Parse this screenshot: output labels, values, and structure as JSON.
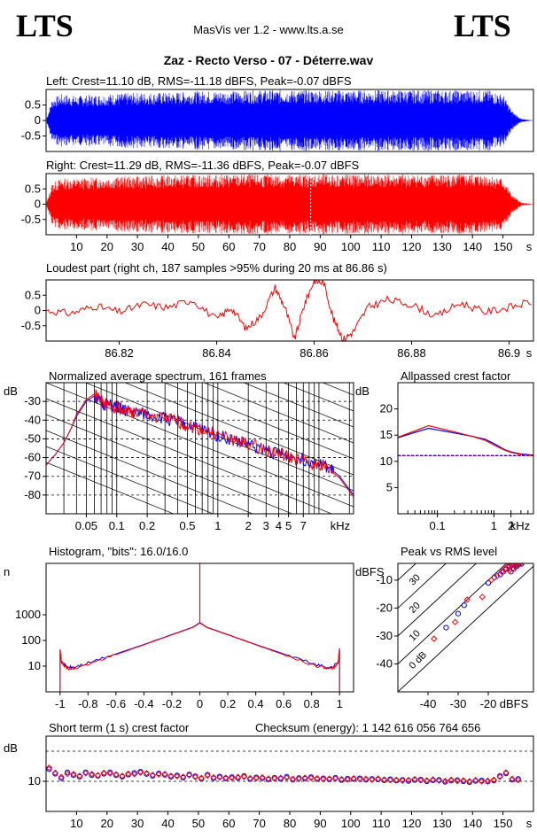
{
  "header": {
    "logo_left": "LTS",
    "logo_right": "LTS",
    "app_title": "MasVis ver 1.2 - www.lts.a.se",
    "track_title": "Zaz - Recto Verso - 07 - Déterre.wav"
  },
  "colors": {
    "left": "#0000ff",
    "right": "#ff0000",
    "grid": "#000000"
  },
  "chart_data": [
    {
      "id": "left_waveform",
      "type": "area",
      "title": "Left: Crest=11.10 dB, RMS=-11.18 dBFS, Peak=-0.07 dBFS",
      "ylim": [
        -1,
        1
      ],
      "xlim": [
        0,
        160
      ],
      "ytick_labels": [
        "0.5",
        "0",
        "-0.5"
      ],
      "yticks": [
        0.5,
        0,
        -0.5
      ],
      "envelope_x": [
        0,
        2,
        5,
        10,
        20,
        30,
        40,
        50,
        60,
        70,
        80,
        87,
        90,
        100,
        110,
        120,
        130,
        140,
        145,
        150,
        153,
        156,
        160
      ],
      "envelope_amp": [
        0.0,
        0.7,
        0.85,
        0.8,
        0.85,
        0.9,
        0.9,
        0.95,
        0.95,
        0.98,
        0.98,
        0.98,
        0.98,
        0.98,
        0.98,
        0.98,
        0.98,
        0.98,
        0.98,
        0.85,
        0.3,
        0.05,
        0.0
      ]
    },
    {
      "id": "right_waveform",
      "type": "area",
      "title": "Right: Crest=11.29 dB, RMS=-11.36 dBFS, Peak=-0.07 dBFS",
      "ylim": [
        -1,
        1
      ],
      "xlim": [
        0,
        160
      ],
      "ytick_labels": [
        "0.5",
        "0",
        "-0.5"
      ],
      "yticks": [
        0.5,
        0,
        -0.5
      ],
      "xtick_labels": [
        "10",
        "20",
        "30",
        "40",
        "50",
        "60",
        "70",
        "80",
        "90",
        "100",
        "110",
        "120",
        "130",
        "140",
        "150",
        "s"
      ],
      "xticks": [
        10,
        20,
        30,
        40,
        50,
        60,
        70,
        80,
        90,
        100,
        110,
        120,
        130,
        140,
        150
      ],
      "marker_x": 86.86,
      "envelope_x": [
        0,
        2,
        5,
        10,
        20,
        30,
        40,
        50,
        60,
        70,
        80,
        87,
        90,
        100,
        110,
        120,
        130,
        140,
        145,
        150,
        153,
        156,
        160
      ],
      "envelope_amp": [
        0.0,
        0.7,
        0.85,
        0.85,
        0.9,
        0.92,
        0.95,
        0.96,
        0.98,
        0.98,
        0.98,
        0.98,
        0.98,
        0.98,
        0.98,
        0.98,
        0.98,
        0.98,
        0.98,
        0.85,
        0.3,
        0.05,
        0.0
      ]
    },
    {
      "id": "loudest_part",
      "type": "line",
      "title": "Loudest part (right ch, 187 samples >95% during 20 ms at 86.86 s)",
      "xlim": [
        86.805,
        86.905
      ],
      "ylim": [
        -1,
        1
      ],
      "ytick_labels": [
        "0.5",
        "0",
        "-0.5"
      ],
      "yticks": [
        0.5,
        0,
        -0.5
      ],
      "xtick_labels": [
        "86.82",
        "86.84",
        "86.86",
        "86.88",
        "86.9",
        "s"
      ],
      "xticks": [
        86.82,
        86.84,
        86.86,
        86.88,
        86.9
      ],
      "x": [
        86.805,
        86.81,
        86.815,
        86.82,
        86.825,
        86.83,
        86.835,
        86.84,
        86.843,
        86.846,
        86.849,
        86.852,
        86.854,
        86.856,
        86.858,
        86.86,
        86.862,
        86.864,
        86.866,
        86.868,
        86.871,
        86.875,
        86.88,
        86.885,
        86.89,
        86.895,
        86.9,
        86.905
      ],
      "y": [
        0.0,
        -0.1,
        0.15,
        -0.05,
        0.2,
        0.1,
        0.35,
        -0.3,
        0.1,
        -0.6,
        -0.2,
        0.75,
        0.1,
        -0.95,
        0.2,
        0.98,
        0.9,
        -0.3,
        -0.95,
        -0.7,
        0.1,
        0.35,
        0.2,
        -0.2,
        0.25,
        -0.05,
        0.1,
        0.3
      ]
    },
    {
      "id": "avg_spectrum",
      "type": "line",
      "title": "Normalized average spectrum, 161 frames",
      "ylabel": "dB",
      "xlabel": "kHz",
      "xscale": "log",
      "xlim": [
        0.02,
        22
      ],
      "ylim": [
        -90,
        -20
      ],
      "ytick_labels": [
        "-30",
        "-40",
        "-50",
        "-60",
        "-70",
        "-80"
      ],
      "yticks": [
        -30,
        -40,
        -50,
        -60,
        -70,
        -80
      ],
      "xtick_labels": [
        "0.05",
        "0.1",
        "0.2",
        "0.5",
        "1",
        "2",
        "3",
        "4",
        "5",
        "7",
        "kHz"
      ],
      "xticks": [
        0.05,
        0.1,
        0.2,
        0.5,
        1,
        2,
        3,
        4,
        5,
        7
      ],
      "x": [
        0.02,
        0.025,
        0.03,
        0.035,
        0.04,
        0.05,
        0.06,
        0.07,
        0.08,
        0.1,
        0.12,
        0.15,
        0.2,
        0.3,
        0.4,
        0.5,
        0.7,
        1,
        1.5,
        2,
        3,
        4,
        5,
        7,
        10,
        13,
        16,
        20,
        22
      ],
      "series": [
        {
          "color": "#0000ff",
          "y": [
            -64,
            -58,
            -52,
            -45,
            -38,
            -30,
            -27,
            -31,
            -32,
            -33,
            -35,
            -36,
            -37,
            -39,
            -41,
            -43,
            -45,
            -48,
            -51,
            -53,
            -56,
            -58,
            -59,
            -61,
            -63,
            -66,
            -70,
            -77,
            -80
          ]
        },
        {
          "color": "#ff0000",
          "y": [
            -64,
            -58,
            -52,
            -45,
            -37,
            -29,
            -26,
            -30,
            -32,
            -33,
            -35,
            -36,
            -37,
            -39,
            -41,
            -43,
            -45,
            -48,
            -51,
            -53,
            -56,
            -58,
            -60,
            -62,
            -64,
            -67,
            -71,
            -78,
            -81
          ]
        }
      ]
    },
    {
      "id": "allpassed_crest",
      "type": "line",
      "title": "Allpassed crest factor",
      "ylabel": "dB",
      "xlabel": "kHz",
      "xscale": "log",
      "xlim": [
        0.02,
        5
      ],
      "ylim": [
        0,
        25
      ],
      "ytick_labels": [
        "20",
        "15",
        "10",
        "5"
      ],
      "yticks": [
        20,
        15,
        10,
        5
      ],
      "xtick_labels": [
        "0.1",
        "1",
        "2",
        "kHz"
      ],
      "xticks": [
        0.1,
        1,
        2
      ],
      "reference_level": 11.1,
      "x": [
        0.02,
        0.04,
        0.07,
        0.1,
        0.2,
        0.4,
        0.7,
        1,
        1.5,
        2,
        3,
        5
      ],
      "series": [
        {
          "color": "#0000ff",
          "y": [
            14.5,
            15.5,
            16.3,
            16.0,
            15.4,
            14.8,
            14.2,
            13.4,
            12.3,
            11.8,
            11.4,
            11.2
          ]
        },
        {
          "color": "#ff0000",
          "y": [
            14.6,
            15.8,
            16.8,
            16.4,
            15.6,
            14.8,
            14.0,
            13.1,
            12.2,
            11.7,
            11.3,
            11.1
          ]
        }
      ]
    },
    {
      "id": "histogram",
      "type": "line",
      "title": "Histogram, \"bits\": 16.0/16.0",
      "ylabel": "n",
      "yscale": "log",
      "xlim": [
        -1.1,
        1.1
      ],
      "ylim": [
        1,
        100000
      ],
      "ytick_labels": [
        "1000",
        "100",
        "10"
      ],
      "yticks": [
        1000,
        100,
        10
      ],
      "xtick_labels": [
        "-1",
        "-0.8",
        "-0.6",
        "-0.4",
        "-0.2",
        "0",
        "0.2",
        "0.4",
        "0.6",
        "0.8",
        "1"
      ],
      "xticks": [
        -1,
        -0.8,
        -0.6,
        -0.4,
        -0.2,
        0,
        0.2,
        0.4,
        0.6,
        0.8,
        1
      ],
      "x": [
        -1,
        -0.99,
        -0.95,
        -0.9,
        -0.8,
        -0.6,
        -0.4,
        -0.2,
        -0.05,
        0,
        0.05,
        0.2,
        0.4,
        0.6,
        0.8,
        0.9,
        0.95,
        0.99,
        1
      ],
      "series": [
        {
          "color": "#0000ff",
          "y": [
            50,
            15,
            9,
            9,
            13,
            30,
            70,
            170,
            330,
            500,
            330,
            170,
            70,
            30,
            13,
            9,
            9,
            15,
            50
          ]
        },
        {
          "color": "#ff0000",
          "y": [
            45,
            14,
            8,
            8,
            12,
            28,
            68,
            165,
            320,
            480,
            320,
            165,
            68,
            28,
            12,
            8,
            8,
            14,
            45
          ]
        }
      ]
    },
    {
      "id": "peak_vs_rms",
      "type": "scatter",
      "title": "Peak vs RMS level",
      "ylabel": "dBFS",
      "xlabel": "dBFS",
      "xlim": [
        -50,
        -5
      ],
      "ylim": [
        -50,
        -4
      ],
      "ytick_labels": [
        "-10",
        "-20",
        "-30",
        "-40"
      ],
      "yticks": [
        -10,
        -20,
        -30,
        -40
      ],
      "xtick_labels": [
        "-40",
        "-30",
        "-20",
        "dBFS"
      ],
      "xticks": [
        -40,
        -30,
        -20
      ],
      "crest_labels": [
        "40",
        "30",
        "20",
        "10",
        "0 dB"
      ],
      "crest_values": [
        40,
        30,
        20,
        10,
        0
      ],
      "series": [
        {
          "color": "#0000ff",
          "x": [
            -34,
            -30,
            -28,
            -20,
            -18,
            -16,
            -15,
            -14,
            -13,
            -12,
            -11,
            -10,
            -10.5,
            -11.5,
            -9,
            -12.5
          ],
          "y": [
            -27,
            -22,
            -19,
            -11,
            -9,
            -8,
            -7,
            -6,
            -5,
            -4.5,
            -4.5,
            -4.3,
            -5,
            -6,
            -4.2,
            -7
          ]
        },
        {
          "color": "#ff0000",
          "x": [
            -38,
            -31,
            -27,
            -22,
            -19,
            -17,
            -15.5,
            -14.5,
            -13.5,
            -12.5,
            -11.5,
            -10.5,
            -11,
            -12,
            -9.5,
            -13
          ],
          "y": [
            -31,
            -25,
            -17,
            -16,
            -10,
            -8.5,
            -7,
            -6,
            -5,
            -4.6,
            -4.5,
            -4.3,
            -5.2,
            -5.8,
            -4.2,
            -6.5
          ]
        }
      ]
    },
    {
      "id": "short_term_crest",
      "type": "scatter",
      "title": "Short term (1 s) crest factor",
      "checksum_label": "Checksum (energy):  1 142 616 056 764 656",
      "ylabel": "dB",
      "xlim": [
        0,
        160
      ],
      "ylim": [
        0,
        25
      ],
      "ytick_labels": [
        "10"
      ],
      "yticks": [
        10
      ],
      "dashed_levels": [
        10,
        20
      ],
      "xtick_labels": [
        "10",
        "20",
        "30",
        "40",
        "50",
        "60",
        "70",
        "80",
        "90",
        "100",
        "110",
        "120",
        "130",
        "140",
        "150",
        "s"
      ],
      "xticks": [
        10,
        20,
        30,
        40,
        50,
        60,
        70,
        80,
        90,
        100,
        110,
        120,
        130,
        140,
        150
      ],
      "x": [
        1,
        3,
        5,
        7,
        9,
        11,
        13,
        15,
        17,
        19,
        21,
        23,
        25,
        27,
        29,
        31,
        33,
        35,
        37,
        39,
        41,
        43,
        45,
        47,
        49,
        51,
        53,
        55,
        57,
        59,
        61,
        63,
        65,
        67,
        69,
        71,
        73,
        75,
        77,
        79,
        81,
        83,
        85,
        87,
        89,
        91,
        93,
        95,
        97,
        99,
        101,
        103,
        105,
        107,
        109,
        111,
        113,
        115,
        117,
        119,
        121,
        123,
        125,
        127,
        129,
        131,
        133,
        135,
        137,
        139,
        141,
        143,
        145,
        147,
        149,
        151,
        153,
        155
      ],
      "series": [
        {
          "color": "#0000ff",
          "y": [
            14,
            12.5,
            11,
            13,
            12,
            11.5,
            13,
            12,
            11.8,
            12.5,
            13,
            12,
            11.5,
            12.2,
            12.8,
            13.2,
            12.4,
            11.8,
            12.6,
            12.1,
            11.5,
            12.0,
            11.2,
            12.3,
            11.7,
            10.8,
            12.2,
            11.0,
            11.6,
            10.9,
            11.4,
            11.1,
            11.8,
            10.7,
            11.3,
            11.0,
            10.6,
            11.2,
            10.8,
            11.5,
            10.5,
            11.1,
            10.9,
            11.4,
            10.7,
            11.0,
            10.6,
            11.2,
            10.4,
            10.9,
            10.7,
            11.0,
            10.5,
            10.8,
            10.6,
            10.3,
            10.7,
            10.2,
            10.5,
            10.1,
            10.4,
            10.6,
            10.0,
            10.3,
            10.5,
            9.8,
            10.2,
            10.4,
            10.0,
            9.7,
            10.1,
            10.3,
            9.9,
            10.2,
            11.8,
            12.6,
            10.5,
            10.8
          ]
        },
        {
          "color": "#ff0000",
          "y": [
            14.5,
            12.8,
            11.4,
            12.5,
            12.4,
            11.8,
            12.7,
            12.4,
            12.0,
            12.8,
            12.6,
            12.3,
            11.8,
            12.5,
            12.4,
            12.9,
            12.7,
            12.1,
            12.3,
            12.4,
            11.8,
            11.7,
            11.5,
            12.0,
            11.4,
            11.1,
            11.9,
            11.3,
            11.3,
            11.2,
            11.1,
            11.4,
            11.5,
            11.0,
            11.0,
            11.3,
            10.9,
            10.9,
            11.1,
            11.2,
            10.8,
            10.8,
            11.2,
            11.1,
            11.0,
            10.7,
            10.9,
            10.9,
            10.7,
            10.6,
            11.0,
            10.7,
            10.8,
            10.5,
            10.9,
            10.6,
            10.4,
            10.5,
            10.2,
            10.4,
            10.7,
            10.3,
            10.3,
            10.6,
            10.2,
            10.1,
            10.5,
            10.1,
            10.3,
            10.0,
            10.4,
            10.0,
            10.2,
            10.5,
            11.5,
            12.9,
            10.8,
            10.4
          ]
        }
      ]
    }
  ]
}
